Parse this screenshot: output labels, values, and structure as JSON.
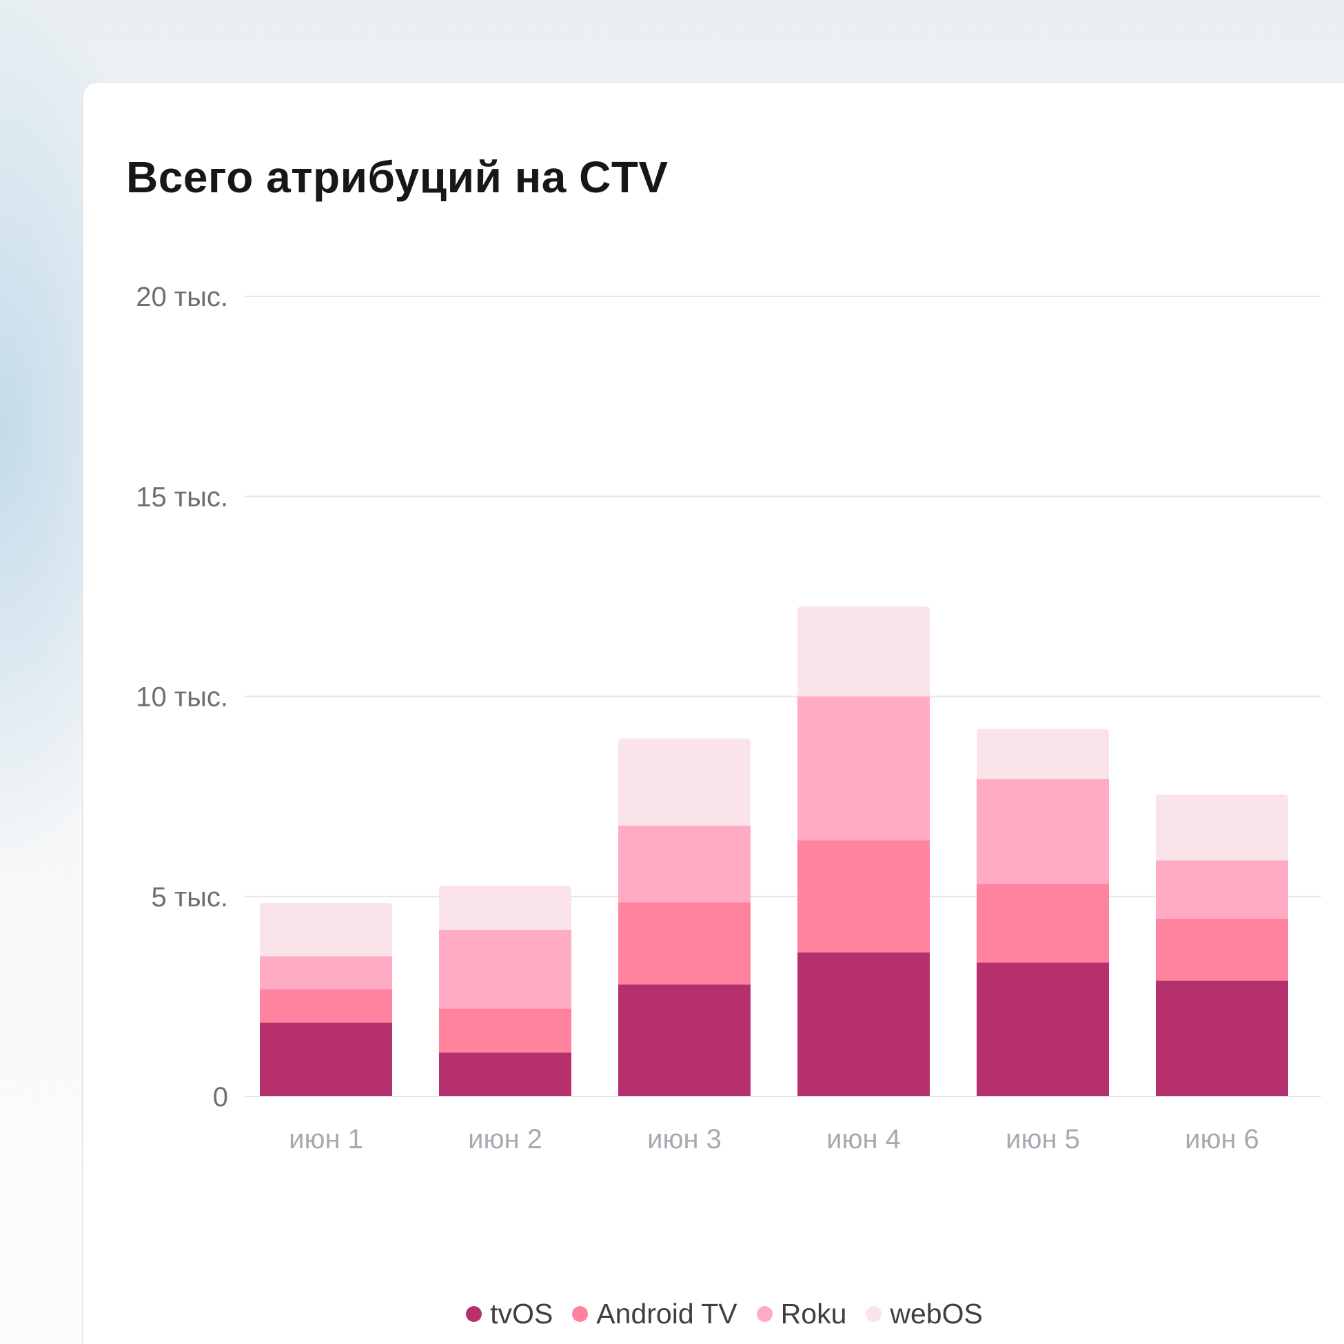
{
  "card": {
    "title": "Всего атрибуций на CTV"
  },
  "chart_data": {
    "type": "bar",
    "stacked": true,
    "title": "Всего атрибуций на CTV",
    "categories": [
      "июн 1",
      "июн 2",
      "июн 3",
      "июн 4",
      "июн 5",
      "июн 6"
    ],
    "series": [
      {
        "name": "tvOS",
        "color": "#b5306c",
        "values": [
          1850,
          1100,
          2800,
          3600,
          3350,
          2900
        ]
      },
      {
        "name": "Android TV",
        "color": "#ff839e",
        "values": [
          830,
          1100,
          2050,
          2800,
          1970,
          1550
        ]
      },
      {
        "name": "Roku",
        "color": "#ffabc3",
        "values": [
          830,
          1970,
          1920,
          3600,
          2620,
          1450
        ]
      },
      {
        "name": "webOS",
        "color": "#fae4e9",
        "values": [
          1330,
          1100,
          2180,
          2250,
          1250,
          1650
        ]
      }
    ],
    "ylim": [
      0,
      20000
    ],
    "yticks": [
      0,
      5000,
      10000,
      15000,
      20000
    ],
    "ytick_labels": [
      "0",
      "5 тыс.",
      "10 тыс.",
      "15 тыс.",
      "20 тыс."
    ],
    "grid": true,
    "legend": "bottom-center",
    "xlabel": "",
    "ylabel": ""
  }
}
